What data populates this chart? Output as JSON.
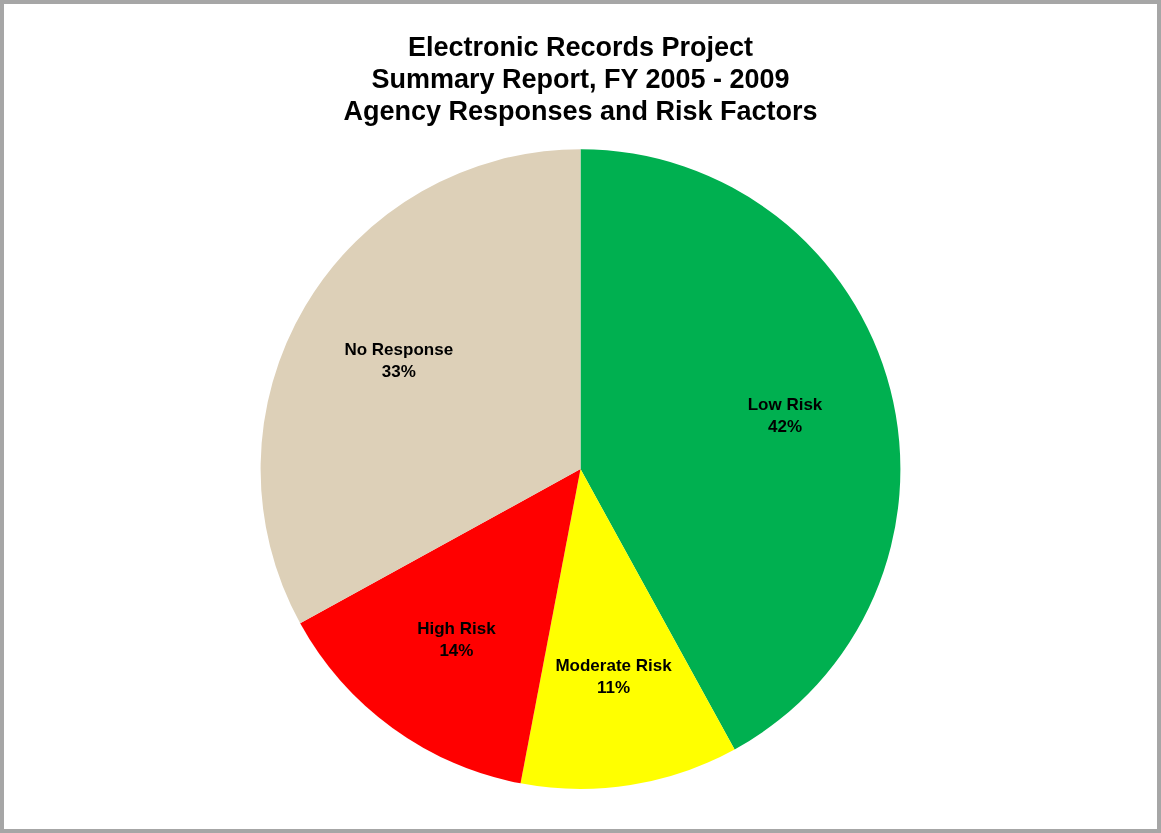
{
  "chart_data": {
    "type": "pie",
    "title": "Electronic Records Project\nSummary Report, FY 2005 - 2009\nAgency Responses and Risk Factors",
    "categories": [
      "Low Risk",
      "Moderate Risk",
      "High Risk",
      "No Response"
    ],
    "values": [
      42,
      11,
      14,
      33
    ],
    "colors": [
      "#00b050",
      "#ffff00",
      "#ff0000",
      "#ddd0b8"
    ],
    "value_labels": [
      "42%",
      "11%",
      "14%",
      "33%"
    ],
    "legend": false
  }
}
